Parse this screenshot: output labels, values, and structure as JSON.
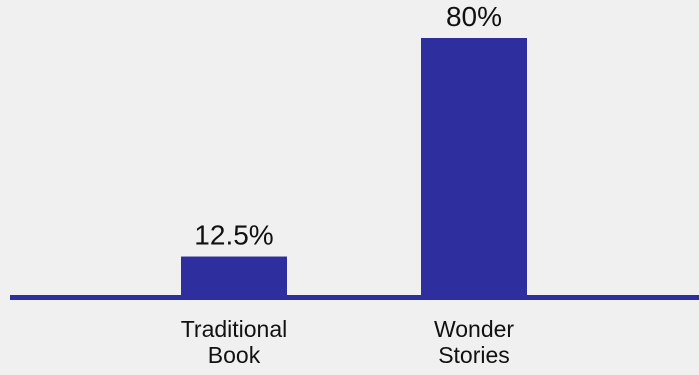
{
  "chart_data": {
    "type": "bar",
    "categories": [
      "Traditional Book",
      "Wonder Stories"
    ],
    "category_lines": [
      [
        "Traditional",
        "Book"
      ],
      [
        "Wonder",
        "Stories"
      ]
    ],
    "values": [
      12.5,
      80
    ],
    "data_labels": [
      "12.5%",
      "80%"
    ],
    "title": "",
    "xlabel": "",
    "ylabel": "",
    "ylim": [
      0,
      100
    ],
    "grid": false,
    "legend": "none",
    "bar_color": "#2e2e9e",
    "axis_color": "#2e2e9e"
  }
}
